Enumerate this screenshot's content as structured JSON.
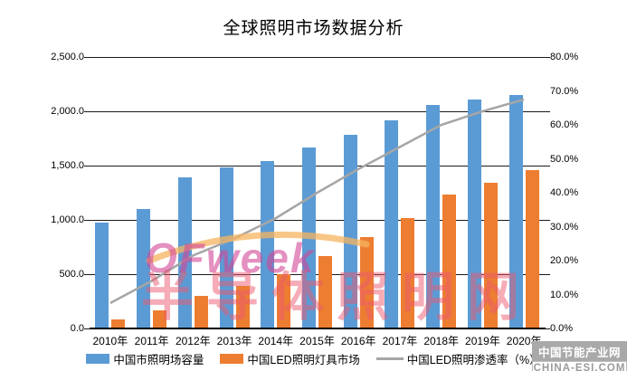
{
  "title": "全球照明市场数据分析",
  "chart_data": {
    "type": "bar",
    "subtype": "bar-line-combo",
    "categories": [
      "2010年",
      "2011年",
      "2012年",
      "2013年",
      "2014年",
      "2015年",
      "2016年",
      "2017年",
      "2018年",
      "2019年",
      "2020年"
    ],
    "series": [
      {
        "name": "中国市照明场容量",
        "type": "bar",
        "axis": "left",
        "color": "#5B9BD5",
        "values": [
          975,
          1100,
          1390,
          1480,
          1545,
          1665,
          1780,
          1920,
          2055,
          2110,
          2150
        ]
      },
      {
        "name": "中国LED照明灯具市场",
        "type": "bar",
        "axis": "left",
        "color": "#ED7D31",
        "values": [
          80,
          170,
          300,
          390,
          500,
          665,
          840,
          1020,
          1230,
          1340,
          1455
        ]
      },
      {
        "name": "中国LED照明渗透率（%）",
        "type": "line",
        "axis": "right",
        "color": "#A6A6A6",
        "values": [
          7.5,
          14.0,
          21.5,
          26.5,
          32.5,
          40.0,
          47.0,
          53.5,
          60.0,
          64.0,
          67.5
        ]
      }
    ],
    "title": "全球照明市场数据分析",
    "xlabel": "",
    "ylabel": "",
    "left_axis": {
      "min": 0,
      "max": 2500,
      "tick_labels_top_to_bottom": [
        "2,500.0",
        "2,000.0",
        "1,500.0",
        "1,000.0",
        "500.0",
        "0.0"
      ]
    },
    "right_axis": {
      "min": 0,
      "max": 80,
      "tick_labels_top_to_bottom": [
        "80.0%",
        "70.0%",
        "60.0%",
        "50.0%",
        "40.0%",
        "30.0%",
        "20.0%",
        "10.0%",
        "0.0%"
      ]
    },
    "grid": true,
    "legend_position": "bottom"
  },
  "legend": {
    "item1": "中国市照明场容量",
    "item2": "中国LED照明灯具市场",
    "item3": "中国LED照明渗透率（%）"
  },
  "colors": {
    "bar_blue": "#5B9BD5",
    "bar_orange": "#ED7D31",
    "line_gray": "#A6A6A6"
  },
  "watermarks": {
    "ofweek_logo": "OFweek",
    "big_text": "半导体照明网",
    "badge_top": "中国节能产业网",
    "badge_bottom": "CHINA-ESI.COM"
  }
}
